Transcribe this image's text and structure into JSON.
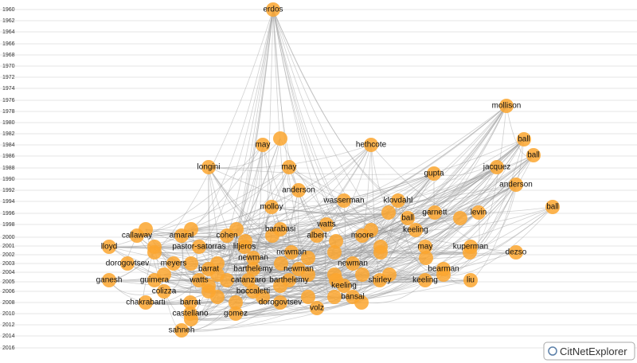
{
  "timeline": [
    "1960",
    "1962",
    "1964",
    "1966",
    "1968",
    "1970",
    "1972",
    "1974",
    "1976",
    "1978",
    "1980",
    "1982",
    "1984",
    "1986",
    "1988",
    "1990",
    "1992",
    "1994",
    "1996",
    "1998",
    "2000",
    "2001",
    "2002",
    "2003",
    "2004",
    "2005",
    "2006",
    "2008",
    "2010",
    "2012",
    "2014",
    "2016"
  ],
  "nodes": [
    {
      "label": "erdos"
    },
    {
      "label": "mollison"
    },
    {
      "label": "ball"
    },
    {
      "label": "ball"
    },
    {
      "label": "may"
    },
    {
      "label": "hethcote"
    },
    {
      "label": "longini"
    },
    {
      "label": "may"
    },
    {
      "label": "gupta"
    },
    {
      "label": "jacquez"
    },
    {
      "label": "anderson"
    },
    {
      "label": "anderson"
    },
    {
      "label": "wasserman"
    },
    {
      "label": "klovdahl"
    },
    {
      "label": "molloy"
    },
    {
      "label": "ball"
    },
    {
      "label": "garnett"
    },
    {
      "label": "levin"
    },
    {
      "label": "ball"
    },
    {
      "label": "watts"
    },
    {
      "label": "keeling"
    },
    {
      "label": "barabasi"
    },
    {
      "label": "callaway"
    },
    {
      "label": "amaral"
    },
    {
      "label": "cohen"
    },
    {
      "label": "albert"
    },
    {
      "label": "moore"
    },
    {
      "label": "liljeros"
    },
    {
      "label": "pastor-satorras"
    },
    {
      "label": "lloyd"
    },
    {
      "label": "may"
    },
    {
      "label": "kuperman"
    },
    {
      "label": "dezso"
    },
    {
      "label": "newman"
    },
    {
      "label": "newman"
    },
    {
      "label": "dorogovtsev"
    },
    {
      "label": "meyers"
    },
    {
      "label": "newman"
    },
    {
      "label": "barrat"
    },
    {
      "label": "barthelemy"
    },
    {
      "label": "newman"
    },
    {
      "label": "bearman"
    },
    {
      "label": "catanzaro"
    },
    {
      "label": "barthelemy"
    },
    {
      "label": "ganesh"
    },
    {
      "label": "guimera"
    },
    {
      "label": "watts"
    },
    {
      "label": "shirley"
    },
    {
      "label": "keeling"
    },
    {
      "label": "liu"
    },
    {
      "label": "keeling"
    },
    {
      "label": "colizza"
    },
    {
      "label": "boccaletti"
    },
    {
      "label": "bansal"
    },
    {
      "label": "chakrabarti"
    },
    {
      "label": "barrat"
    },
    {
      "label": "dorogovtsev"
    },
    {
      "label": "volz"
    },
    {
      "label": "castellano"
    },
    {
      "label": "gomez"
    },
    {
      "label": "sahneh"
    }
  ],
  "logo": "CitNetExplorer"
}
